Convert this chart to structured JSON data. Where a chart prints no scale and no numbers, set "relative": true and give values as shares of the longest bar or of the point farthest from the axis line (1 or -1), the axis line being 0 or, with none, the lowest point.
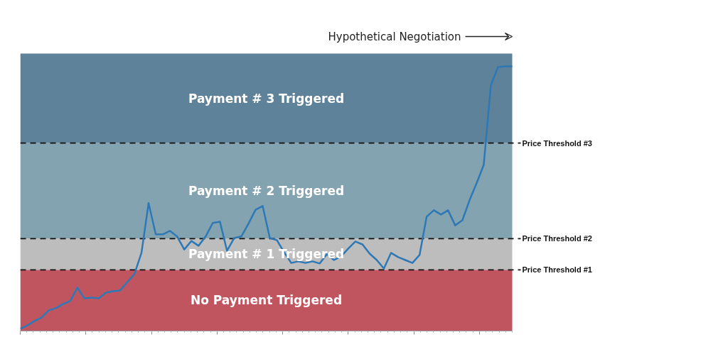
{
  "chart_data": {
    "type": "line",
    "relative": true,
    "grid": false,
    "tick_labels": false,
    "categories": [
      null,
      null,
      null,
      null,
      null,
      null,
      null,
      null,
      null,
      null,
      null,
      null,
      null,
      null,
      null,
      null,
      null,
      null,
      null,
      null,
      null,
      null,
      null,
      null,
      null,
      null,
      null,
      null,
      null,
      null,
      null,
      null,
      null,
      null,
      null,
      null,
      null,
      null,
      null,
      null,
      null,
      null,
      null,
      null,
      null,
      null,
      null,
      null,
      null,
      null,
      null,
      null,
      null,
      null,
      null,
      null,
      null,
      null,
      null,
      null,
      null,
      null,
      null,
      null,
      null,
      null,
      null,
      null,
      null,
      null
    ],
    "series": [
      {
        "color": "#2e78b5",
        "values": [
          0.008,
          0.021,
          0.038,
          0.051,
          0.078,
          0.086,
          0.102,
          0.113,
          0.164,
          0.123,
          0.126,
          0.123,
          0.145,
          0.15,
          0.153,
          0.185,
          0.214,
          0.295,
          0.483,
          0.365,
          0.365,
          0.378,
          0.357,
          0.308,
          0.34,
          0.322,
          0.357,
          0.408,
          0.413,
          0.303,
          0.351,
          0.357,
          0.405,
          0.458,
          0.472,
          0.351,
          0.343,
          0.298,
          0.257,
          0.263,
          0.257,
          0.263,
          0.255,
          0.29,
          0.268,
          0.282,
          0.311,
          0.338,
          0.327,
          0.292,
          0.268,
          0.236,
          0.295,
          0.279,
          0.268,
          0.257,
          0.287,
          0.432,
          0.456,
          0.44,
          0.456,
          0.399,
          0.418,
          0.493,
          0.558,
          0.627,
          0.928,
          0.997,
          1,
          1
        ]
      }
    ],
    "line_style": "solid",
    "marker": "none",
    "bands": [
      {
        "axis": "y",
        "from": 0,
        "to": 0.231,
        "label": "No Payment Triggered",
        "color": "#c0545f"
      },
      {
        "axis": "y",
        "from": 0.231,
        "to": 0.349,
        "label": "Payment # 1 Triggered",
        "color": "#bdbdbd"
      },
      {
        "axis": "y",
        "from": 0.349,
        "to": 0.71,
        "label": "Payment # 2 Triggered",
        "color": "#84a3b1"
      },
      {
        "axis": "y",
        "from": 0.71,
        "to": 1.048,
        "label": "Payment # 3 Triggered",
        "color": "#5e8299"
      }
    ],
    "ref_lines": [
      {
        "axis": "y",
        "value": 0.231,
        "label": "Price Threshold #1",
        "color": "#111111",
        "line_style": "dashed"
      },
      {
        "axis": "y",
        "value": 0.349,
        "label": "Price Threshold #2",
        "color": "#111111",
        "line_style": "dashed"
      },
      {
        "axis": "y",
        "value": 0.71,
        "label": "Price Threshold #3",
        "color": "#111111",
        "line_style": "dashed"
      }
    ],
    "annotations": [
      "Hypothetical Negotiation"
    ]
  }
}
